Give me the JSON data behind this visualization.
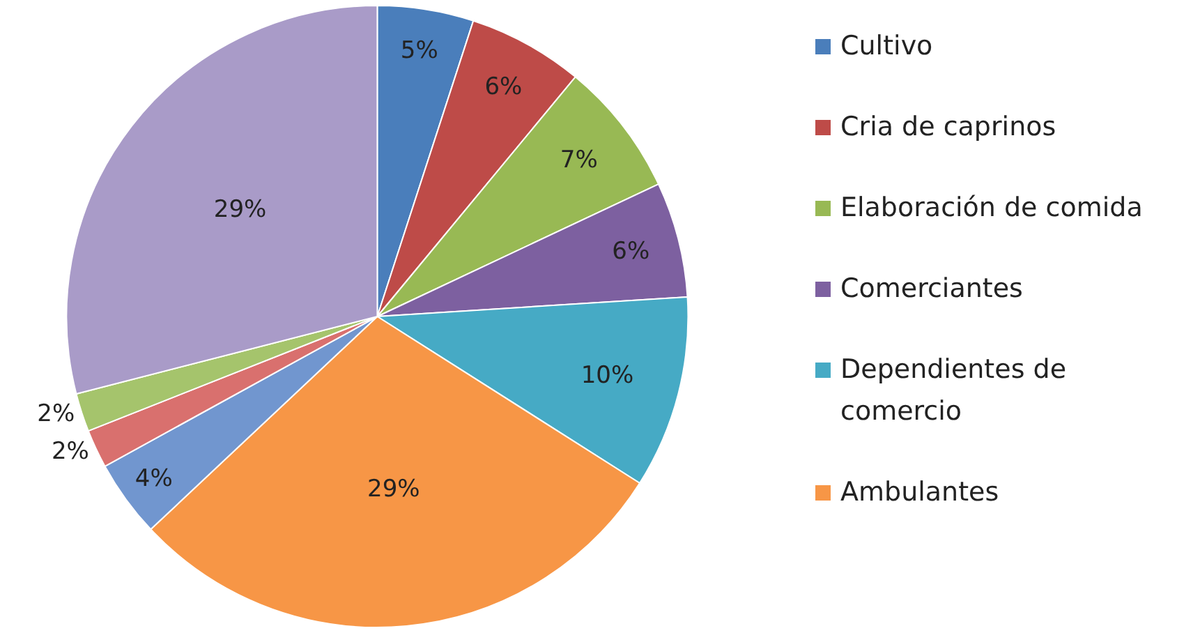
{
  "chart_data": {
    "type": "pie",
    "categories": [
      "Cultivo",
      "Cria de caprinos",
      "Elaboración de comida",
      "Comerciantes",
      "Dependientes de comercio",
      "Ambulantes",
      null,
      null,
      null,
      null
    ],
    "values": [
      5,
      6,
      7,
      6,
      10,
      29,
      4,
      2,
      2,
      29
    ],
    "value_labels": [
      "5%",
      "6%",
      "7%",
      "6%",
      "10%",
      "29%",
      "4%",
      "2%",
      "2%",
      "29%"
    ],
    "colors": [
      "#4a7ebb",
      "#be4b48",
      "#98b954",
      "#7d60a0",
      "#46aac5",
      "#f79646",
      "#7196cf",
      "#d9706e",
      "#a5c46c",
      "#a99bc8"
    ],
    "legend": "right"
  }
}
